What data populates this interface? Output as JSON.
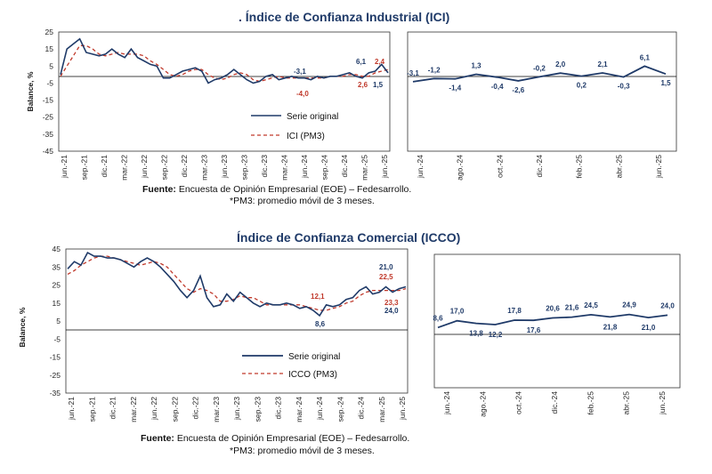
{
  "colors": {
    "series": "#1f3a68",
    "pm3": "#c0392b",
    "zero": "#000000",
    "frame": "#333333"
  },
  "footnotes": {
    "source_label": "Fuente:",
    "source_text": "Encuesta de Opinión Empresarial (EOE) – Fedesarrollo.",
    "pm3_text": "*PM3: promedio móvil de 3 meses."
  },
  "chart_data": [
    {
      "id": "ici",
      "type": "line",
      "title": ". Índice de Confianza Industrial (ICI)",
      "ylabel": "Balance, %",
      "ylim": [
        -45,
        25
      ],
      "yticks": [
        "25",
        "15",
        "5",
        "-5",
        "-15",
        "-25",
        "-35",
        "-45"
      ],
      "xticks": [
        "jun.-21",
        "sep.-21",
        "dic.-21",
        "mar.-22",
        "jun.-22",
        "sep.-22",
        "dic.-22",
        "mar.-23",
        "jun.-23",
        "sep.-23",
        "dic.-23",
        "mar.-24",
        "jun.-24",
        "sep.-24",
        "dic.-24",
        "mar.-25",
        "jun.-25"
      ],
      "legend": [
        "Serie original",
        "ICI (PM3)"
      ],
      "series": [
        {
          "name": "Serie original",
          "values": [
            0,
            15,
            18,
            21,
            13,
            12,
            11,
            12,
            15,
            12,
            10,
            15,
            10,
            8,
            6,
            5,
            -2,
            -2,
            0,
            2,
            3,
            4,
            2,
            -5,
            -3,
            -2,
            0,
            3,
            0,
            -3,
            -5,
            -4,
            -1,
            0,
            -3,
            -2,
            -1,
            -2,
            -2,
            -3,
            -1,
            -2,
            -1,
            -1,
            0,
            1,
            -1,
            -2,
            1,
            2,
            6,
            1
          ]
        },
        {
          "name": "ICI (PM3)",
          "values": [
            -1,
            5,
            11,
            17,
            17,
            15,
            12,
            11,
            12,
            13,
            12,
            12,
            12,
            11,
            8,
            6,
            3,
            0,
            -1,
            0,
            2,
            3,
            3,
            0,
            -2,
            -3,
            -2,
            0,
            1,
            0,
            -3,
            -4,
            -3,
            -2,
            -1,
            -2,
            -2,
            -2,
            -2,
            -2,
            -2,
            -2,
            -1,
            -1,
            -1,
            0,
            0,
            -1,
            -1,
            1,
            2,
            3
          ]
        }
      ],
      "annotations_series": [
        "6,1",
        "-3,1",
        "1,5"
      ],
      "annotations_pm3": [
        "2,4",
        "-4,0",
        "2,6"
      ]
    },
    {
      "id": "ici_zoom",
      "type": "line",
      "xticks": [
        "jun.-24",
        "ago.-24",
        "oct.-24",
        "dic.-24",
        "feb.-25",
        "abr.-25",
        "jun.-25"
      ],
      "values": [
        -3.1,
        -1.2,
        -1.4,
        1.3,
        -0.4,
        -2.6,
        -0.2,
        2.0,
        0.2,
        2.1,
        -0.3,
        6.1,
        1.5
      ],
      "labels": [
        "-3,1",
        "-1,2",
        "-1,4",
        "1,3",
        "-0,4",
        "-2,6",
        "-0,2",
        "2,0",
        "0,2",
        "2,1",
        "-0,3",
        "6,1",
        "1,5"
      ]
    },
    {
      "id": "icco",
      "type": "line",
      "title": "Índice de Confianza Comercial (ICCO)",
      "ylabel": "Balance, %",
      "ylim": [
        -35,
        45
      ],
      "yticks": [
        "45",
        "35",
        "25",
        "15",
        "5",
        "-5",
        "-15",
        "-25",
        "-35"
      ],
      "xticks": [
        "jun.-21",
        "sep.-21",
        "dic.-21",
        "mar.-22",
        "jun.-22",
        "sep.-22",
        "dic.-22",
        "mar.-23",
        "jun.-23",
        "sep.-23",
        "dic.-23",
        "mar.-24",
        "jun.-24",
        "sep.-24",
        "dic.-24",
        "mar.-25",
        "jun.-25"
      ],
      "legend": [
        "Serie original",
        "ICCO (PM3)"
      ],
      "series": [
        {
          "name": "Serie original",
          "values": [
            34,
            38,
            36,
            43,
            41,
            41,
            40,
            40,
            39,
            37,
            35,
            38,
            40,
            38,
            35,
            31,
            27,
            22,
            18,
            22,
            30,
            18,
            13,
            14,
            20,
            16,
            21,
            18,
            15,
            13,
            15,
            14,
            14,
            15,
            14,
            12,
            13,
            11,
            8,
            14,
            13,
            14,
            17,
            18,
            22,
            24,
            20,
            21,
            24,
            21,
            23,
            24
          ]
        },
        {
          "name": "ICCO (PM3)",
          "values": [
            31,
            33,
            36,
            38,
            40,
            41,
            41,
            40,
            39,
            38,
            37,
            36,
            37,
            38,
            37,
            35,
            31,
            27,
            23,
            21,
            23,
            22,
            20,
            16,
            16,
            17,
            19,
            18,
            18,
            16,
            14,
            14,
            14,
            14,
            14,
            14,
            13,
            12,
            11,
            11,
            12,
            13,
            15,
            16,
            19,
            21,
            22,
            22,
            22,
            22,
            22,
            23
          ]
        }
      ],
      "annotations": [
        "21,0",
        "22,5",
        "12,1",
        "23,3",
        "24,0",
        "8,6"
      ]
    },
    {
      "id": "icco_zoom",
      "type": "line",
      "xticks": [
        "jun.-24",
        "ago.-24",
        "oct.-24",
        "dic.-24",
        "feb.-25",
        "abr.-25",
        "jun.-25"
      ],
      "values": [
        8.6,
        17.0,
        13.8,
        12.2,
        17.8,
        17.6,
        20.6,
        21.6,
        24.5,
        21.8,
        24.9,
        21.0,
        24.0
      ],
      "labels": [
        "8,6",
        "17,0",
        "13,8",
        "12,2",
        "17,8",
        "17,6",
        "20,6",
        "21,6",
        "24,5",
        "21,8",
        "24,9",
        "21,0",
        "24,0"
      ]
    }
  ]
}
